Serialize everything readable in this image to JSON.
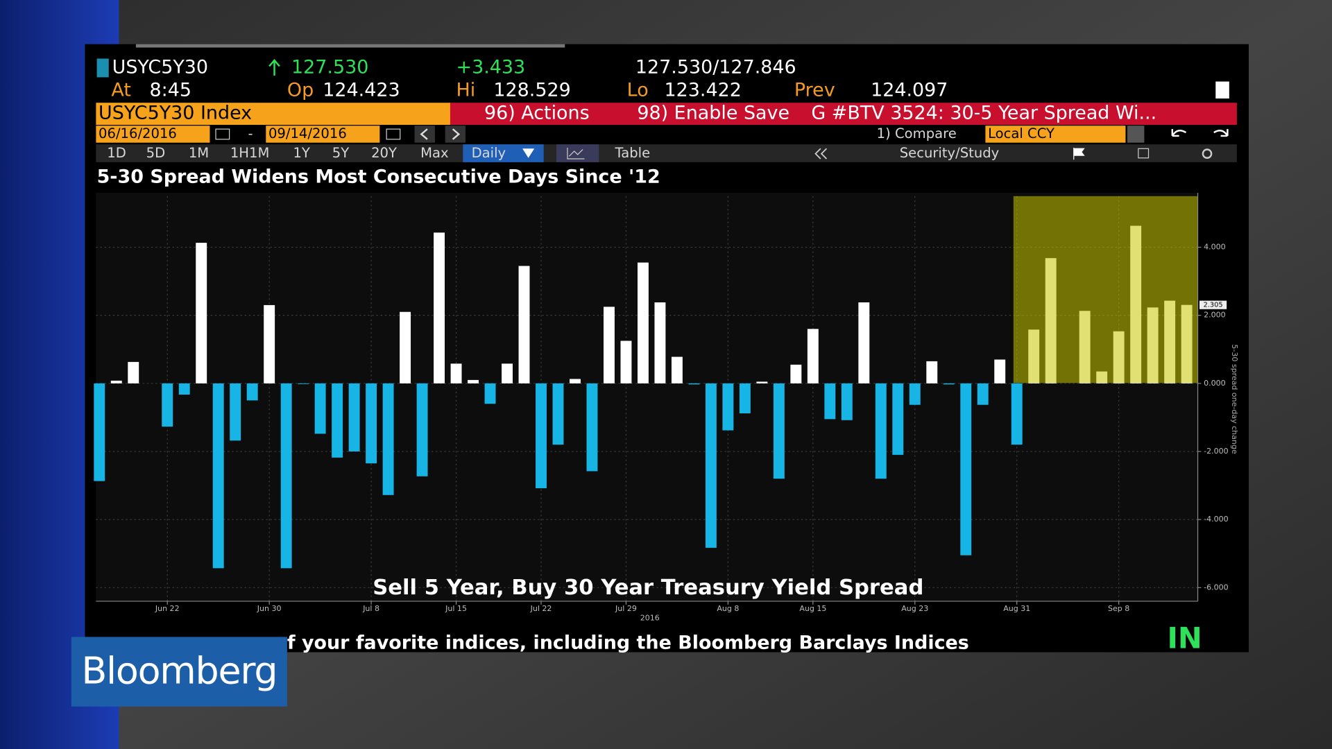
{
  "header": {
    "ticker": "USYC5Y30",
    "last": "127.530",
    "change": "+3.433",
    "bid_ask": "127.530/127.846",
    "at_label": "At",
    "at": "8:45",
    "op_label": "Op",
    "op": "124.423",
    "hi_label": "Hi",
    "hi": "128.529",
    "lo_label": "Lo",
    "lo": "123.422",
    "prev_label": "Prev",
    "prev": "124.097"
  },
  "toolbar": {
    "security": "USYC5Y30 Index",
    "actions": "96) Actions",
    "save": "98) Enable Save",
    "story": "G #BTV 3524: 30-5 Year Spread Wi...",
    "start_date": "06/16/2016",
    "date_sep": "-",
    "end_date": "09/14/2016",
    "compare": "1) Compare",
    "currency": "Local CCY",
    "periods": [
      "1D",
      "5D",
      "1M",
      "1H1M",
      "1Y",
      "5Y",
      "20Y",
      "Max"
    ],
    "frequency": "Daily",
    "table": "Table",
    "study": "Security/Study"
  },
  "chart_data": {
    "type": "bar",
    "title": "5-30 Spread Widens Most Consecutive Days Since '12",
    "annotation": "Sell 5 Year, Buy 30 Year Treasury Yield Spread",
    "y_label": "5-30 spread one-day change",
    "x_year_label": "2016",
    "categories": [
      null,
      null,
      null,
      null,
      "Jun 22",
      null,
      null,
      null,
      null,
      null,
      "Jun 30",
      null,
      null,
      null,
      null,
      null,
      "Jul 8",
      null,
      null,
      null,
      null,
      "Jul 15",
      null,
      null,
      null,
      null,
      "Jul 22",
      null,
      null,
      null,
      null,
      "Jul 29",
      null,
      null,
      null,
      null,
      null,
      "Aug 8",
      null,
      null,
      null,
      null,
      "Aug 15",
      null,
      null,
      null,
      null,
      null,
      "Aug 23",
      null,
      null,
      null,
      null,
      null,
      "Aug 31",
      null,
      null,
      null,
      null,
      null,
      "Sep 8",
      null,
      null,
      null,
      null
    ],
    "values": [
      -2.87,
      0.08,
      0.63,
      0,
      -1.27,
      -0.33,
      4.13,
      -5.43,
      -1.68,
      -0.5,
      2.3,
      -5.43,
      -0.02,
      -1.48,
      -2.18,
      -2,
      -2.35,
      -3.28,
      2.1,
      -2.73,
      4.43,
      0.58,
      0.1,
      -0.6,
      0.58,
      3.45,
      -3.08,
      -1.8,
      0.13,
      -2.58,
      2.25,
      1.25,
      3.55,
      2.38,
      0.78,
      -0.03,
      -4.83,
      -1.38,
      -0.88,
      0.05,
      -2.8,
      0.55,
      1.6,
      -1.05,
      -1.08,
      2.38,
      -2.8,
      -2.1,
      -0.63,
      0.65,
      -0.03,
      -5.05,
      -0.63,
      0.7,
      -1.8,
      1.58,
      3.68,
      0,
      2.13,
      0.35,
      1.53,
      4.63,
      2.23,
      2.43,
      2.305
    ],
    "positive_color": "#ffffff",
    "negative_color": "#17b4e6",
    "ylim": [
      -6.4,
      5.5
    ],
    "yticks": [
      {
        "value": -6,
        "label": "-6.000"
      },
      {
        "value": -4,
        "label": "-4.000"
      },
      {
        "value": -2,
        "label": "-2.000"
      },
      {
        "value": 0,
        "label": "0.000"
      },
      {
        "value": 2,
        "label": "2.000"
      },
      {
        "value": 4,
        "label": "4.000"
      }
    ],
    "grid": true
  },
  "ticker_tape": "f your favorite indices, including the Bloomberg Barclays Indices",
  "live": "IN",
  "logo": "Bloomberg"
}
